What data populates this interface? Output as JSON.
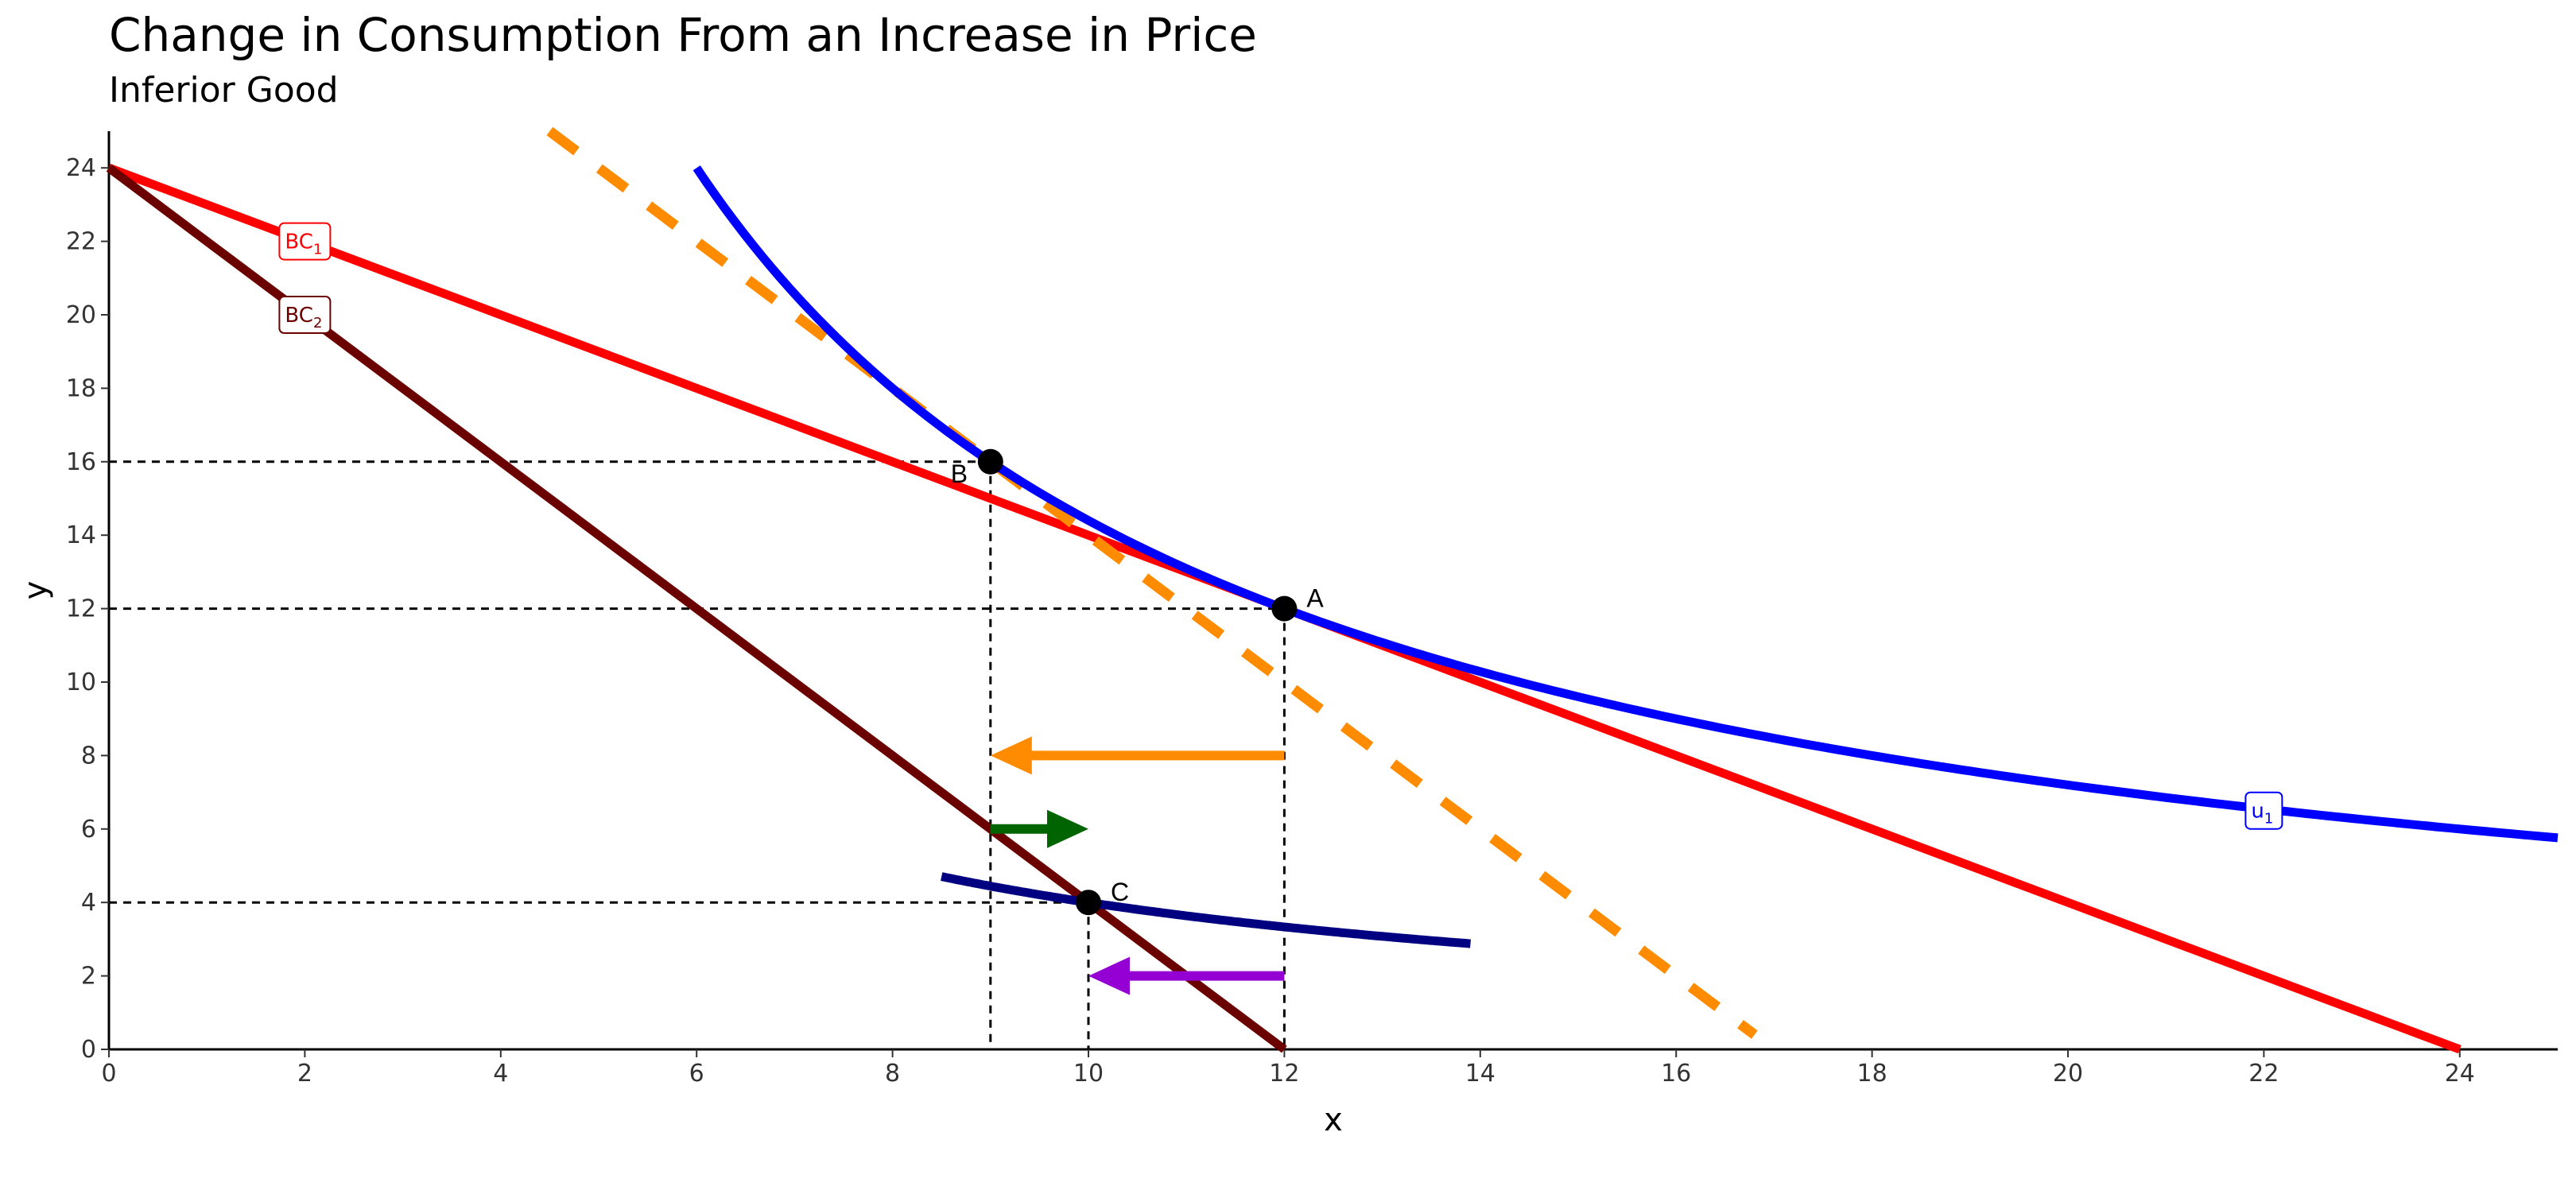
{
  "chart_data": {
    "type": "line",
    "title": "Change in Consumption From an Increase in Price",
    "subtitle": "Inferior Good",
    "xlabel": "x",
    "ylabel": "y",
    "xlim": [
      0,
      25
    ],
    "ylim": [
      0,
      25
    ],
    "xticks": [
      0,
      2,
      4,
      6,
      8,
      10,
      12,
      14,
      16,
      18,
      20,
      22,
      24
    ],
    "yticks": [
      0,
      2,
      4,
      6,
      8,
      10,
      12,
      14,
      16,
      18,
      20,
      22,
      24
    ],
    "grid": false,
    "lines": [
      {
        "label_main": "BC",
        "label_sub": "1",
        "color": "#ff0000",
        "style": "solid",
        "points": [
          [
            0,
            24
          ],
          [
            24,
            0
          ]
        ],
        "label_at": [
          2,
          22
        ]
      },
      {
        "label_main": "BC",
        "label_sub": "2",
        "color": "#6b0000",
        "style": "solid",
        "points": [
          [
            0,
            24
          ],
          [
            12,
            0
          ]
        ],
        "label_at": [
          2,
          20
        ]
      },
      {
        "label_main": "",
        "label_sub": "",
        "color": "#ff8c00",
        "style": "dashed",
        "points": [
          [
            4.5,
            25
          ],
          [
            16.8,
            0.4
          ]
        ],
        "label_at": null
      }
    ],
    "curves": [
      {
        "label_main": "u",
        "label_sub": "1",
        "color": "#0000ff",
        "k": 144,
        "x_from": 6,
        "x_to": 25,
        "label_at": [
          22,
          6.5
        ]
      },
      {
        "label_main": "",
        "label_sub": "",
        "color": "#000080",
        "k": 40,
        "x_from": 8.5,
        "x_to": 13.9,
        "label_at": null
      }
    ],
    "points": [
      {
        "label": "A",
        "x": 12,
        "y": 12,
        "label_pos": "upper-right"
      },
      {
        "label": "B",
        "x": 9,
        "y": 16,
        "label_pos": "lower-left"
      },
      {
        "label": "C",
        "x": 10,
        "y": 4,
        "label_pos": "upper-right"
      }
    ],
    "arrows": [
      {
        "color": "#ff8c00",
        "from": [
          12,
          8
        ],
        "to": [
          9,
          8
        ]
      },
      {
        "color": "#006400",
        "from": [
          9,
          6
        ],
        "to": [
          10,
          6
        ]
      },
      {
        "color": "#9400d3",
        "from": [
          12,
          2
        ],
        "to": [
          10,
          2
        ]
      }
    ]
  }
}
